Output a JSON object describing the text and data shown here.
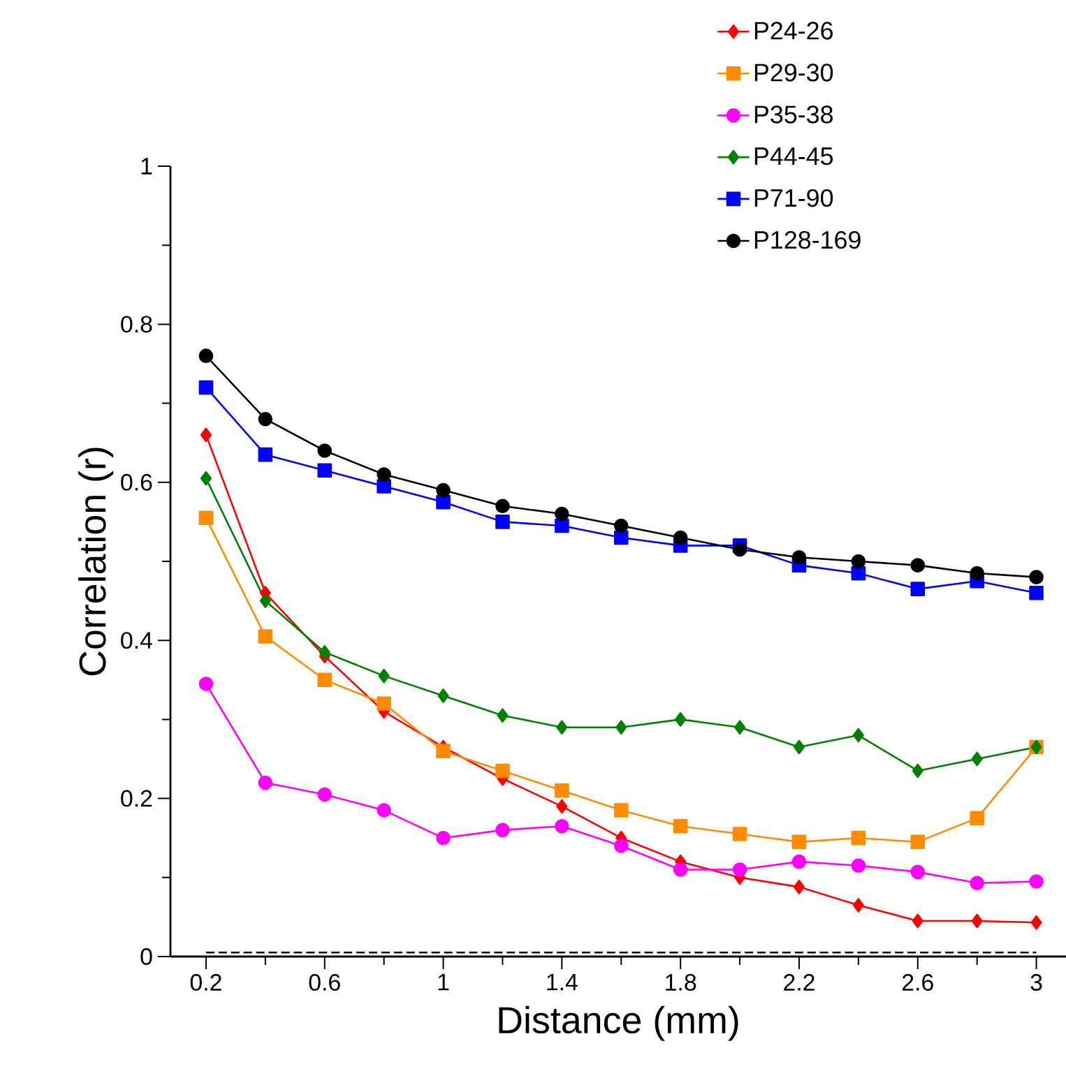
{
  "chart_data": {
    "type": "line",
    "xlabel": "Distance (mm)",
    "ylabel": "Correlation (r)",
    "x": [
      0.2,
      0.4,
      0.6,
      0.8,
      1.0,
      1.2,
      1.4,
      1.6,
      1.8,
      2.0,
      2.2,
      2.4,
      2.6,
      2.8,
      3.0
    ],
    "xlim": [
      0.08,
      3.1
    ],
    "ylim": [
      0,
      1
    ],
    "xticks": [
      0.2,
      0.6,
      1,
      1.4,
      1.8,
      2.2,
      2.6,
      3
    ],
    "yticks": [
      0,
      0.2,
      0.4,
      0.6,
      0.8,
      1
    ],
    "grid": false,
    "legend": "top right",
    "series": [
      {
        "name": "P24-26",
        "color": "#ff0000",
        "marker": "diamond",
        "values": [
          0.66,
          0.46,
          0.38,
          0.31,
          0.265,
          0.225,
          0.19,
          0.15,
          0.12,
          0.1,
          0.088,
          0.065,
          0.045,
          0.045,
          0.043
        ]
      },
      {
        "name": "P29-30",
        "color": "#ff8c00",
        "marker": "square",
        "values": [
          0.555,
          0.405,
          0.35,
          0.32,
          0.26,
          0.235,
          0.21,
          0.185,
          0.165,
          0.155,
          0.145,
          0.15,
          0.145,
          0.175,
          0.265
        ]
      },
      {
        "name": "P35-38",
        "color": "#ff00ff",
        "marker": "circle",
        "values": [
          0.345,
          0.22,
          0.205,
          0.185,
          0.15,
          0.16,
          0.165,
          0.14,
          0.11,
          0.11,
          0.12,
          0.115,
          0.107,
          0.093,
          0.095
        ]
      },
      {
        "name": "P44-45",
        "color": "#008000",
        "marker": "diamond",
        "values": [
          0.605,
          0.45,
          0.385,
          0.355,
          0.33,
          0.305,
          0.29,
          0.29,
          0.3,
          0.29,
          0.265,
          0.28,
          0.235,
          0.25,
          0.265
        ]
      },
      {
        "name": "P71-90",
        "color": "#0000ff",
        "marker": "square",
        "values": [
          0.72,
          0.635,
          0.615,
          0.595,
          0.575,
          0.55,
          0.545,
          0.53,
          0.52,
          0.52,
          0.495,
          0.485,
          0.465,
          0.475,
          0.46
        ]
      },
      {
        "name": "P128-169",
        "color": "#000000",
        "marker": "circle",
        "values": [
          0.76,
          0.68,
          0.64,
          0.61,
          0.59,
          0.57,
          0.56,
          0.545,
          0.53,
          0.515,
          0.505,
          0.5,
          0.495,
          0.485,
          0.48
        ]
      },
      {
        "color": "#000000",
        "marker": "none",
        "line_style": "dashed",
        "values": [
          0.005,
          0.005,
          0.005,
          0.005,
          0.005,
          0.005,
          0.005,
          0.005,
          0.005,
          0.005,
          0.005,
          0.005,
          0.005,
          0.005,
          0.005
        ]
      }
    ]
  }
}
